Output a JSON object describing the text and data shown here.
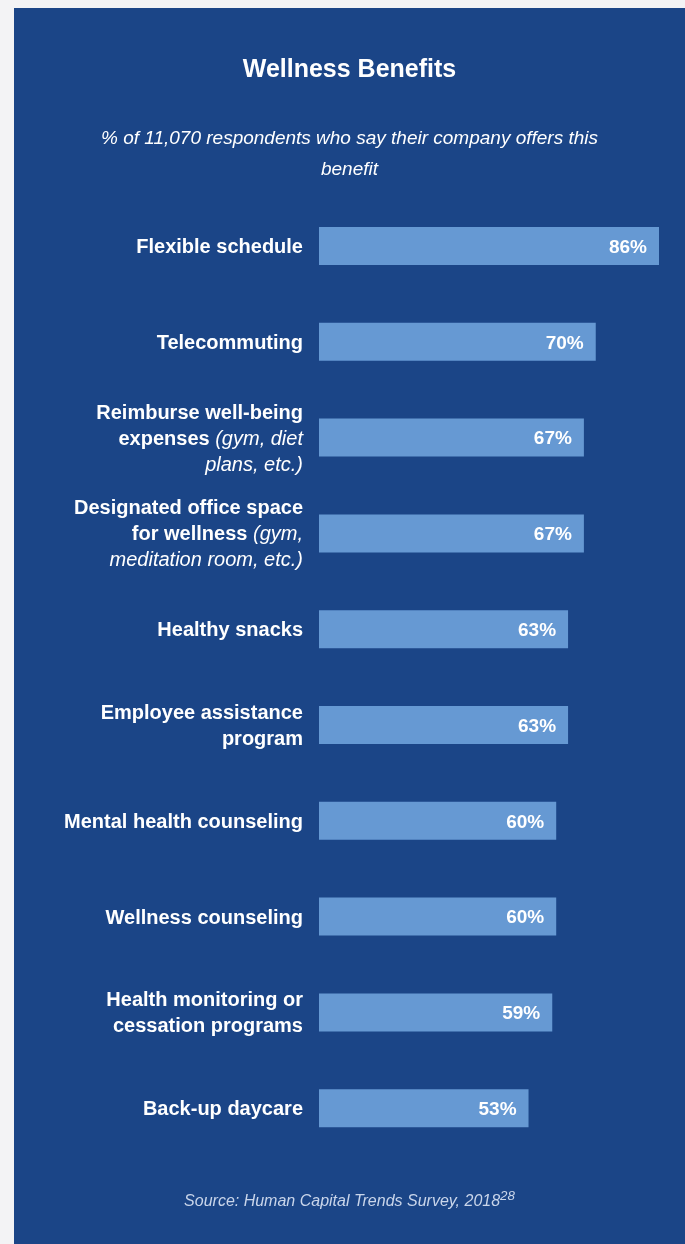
{
  "chart_data": {
    "type": "bar",
    "orientation": "horizontal",
    "title": "Wellness Benefits",
    "subtitle": "% of 11,070 respondents who say their company offers this benefit",
    "categories": [
      "Flexible schedule",
      "Telecommuting",
      "Reimburse well-being expenses (gym, diet plans, etc.)",
      "Designated office space for wellness (gym, meditation room, etc.)",
      "Healthy snacks",
      "Employee assistance program",
      "Mental health counseling",
      "Wellness counseling",
      "Health monitoring or cessation programs",
      "Back-up daycare"
    ],
    "values": [
      86,
      70,
      67,
      67,
      63,
      63,
      60,
      60,
      59,
      53
    ],
    "value_labels": [
      "86%",
      "70%",
      "67%",
      "67%",
      "63%",
      "63%",
      "60%",
      "60%",
      "59%",
      "53%"
    ],
    "color": "#6699d3",
    "annotations": [
      "Source: Human Capital Trends Survey, 2018$^{28}$"
    ]
  }
}
